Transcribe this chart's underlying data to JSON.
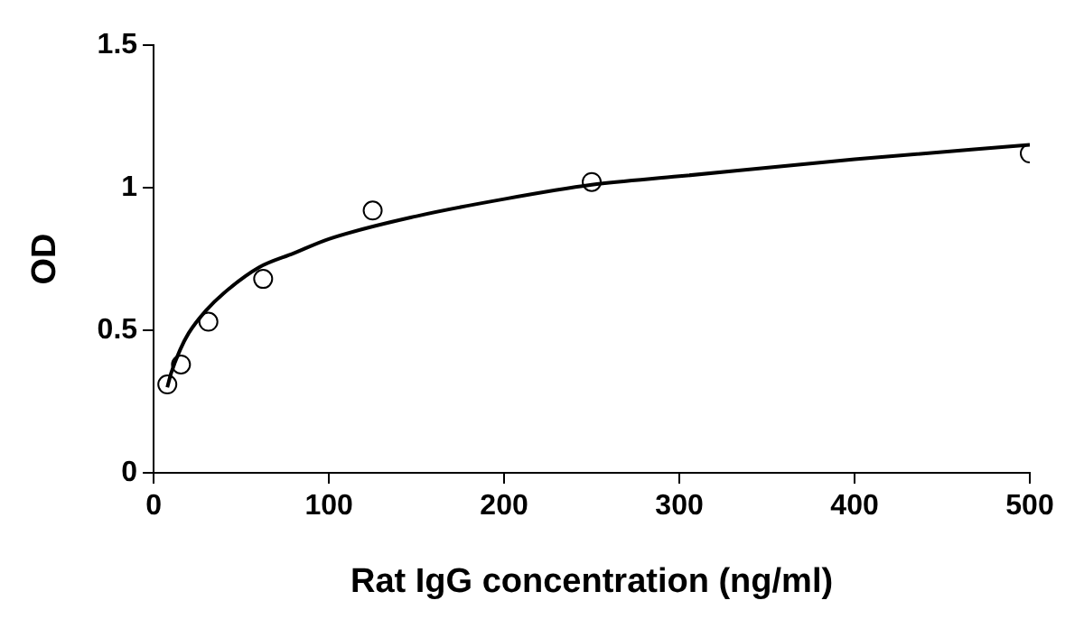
{
  "chart_data": {
    "type": "scatter",
    "xlabel": "Rat IgG concentration (ng/ml)",
    "ylabel": "OD",
    "xlim": [
      0,
      500
    ],
    "xticks": [
      0,
      100,
      200,
      300,
      400,
      500
    ],
    "ylim": [
      0,
      1.5
    ],
    "yticks": [
      0,
      0.5,
      1,
      1.5
    ],
    "grid": false,
    "legend": false,
    "series": [
      {
        "marker": "circle",
        "color": "#000000",
        "x": [
          7.8,
          15.6,
          31.25,
          62.5,
          125,
          250,
          500
        ],
        "values": [
          0.31,
          0.38,
          0.53,
          0.68,
          0.92,
          1.02,
          1.12
        ]
      },
      {
        "type": "line",
        "marker": "none",
        "color": "#000000",
        "line_style": "solid",
        "x": [
          7.8,
          10,
          15,
          20,
          30,
          40,
          60,
          80,
          100,
          150,
          200,
          250,
          300,
          400,
          500
        ],
        "values": [
          0.3,
          0.35,
          0.43,
          0.49,
          0.57,
          0.63,
          0.72,
          0.77,
          0.82,
          0.9,
          0.96,
          1.01,
          1.04,
          1.1,
          1.15
        ]
      }
    ]
  }
}
